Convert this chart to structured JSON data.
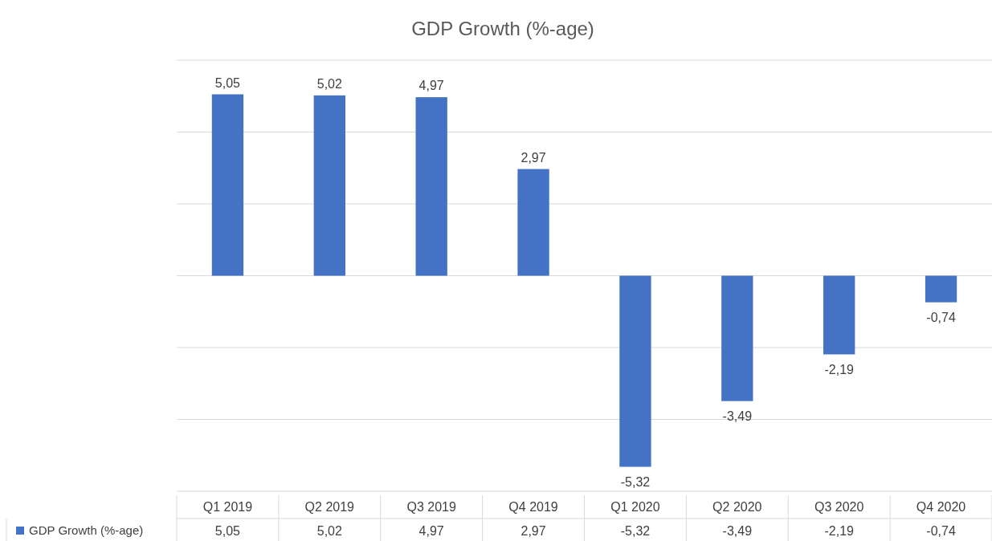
{
  "chart_data": {
    "type": "bar",
    "title": "GDP Growth (%-age)",
    "categories": [
      "Q1 2019",
      "Q2 2019",
      "Q3 2019",
      "Q4 2019",
      "Q1 2020",
      "Q2 2020",
      "Q3 2020",
      "Q4 2020"
    ],
    "series": [
      {
        "name": "GDP Growth (%-age)",
        "color": "#4472c4",
        "values": [
          5.05,
          5.02,
          4.97,
          2.97,
          -5.32,
          -3.49,
          -2.19,
          -0.74
        ],
        "value_labels": [
          "5,05",
          "5,02",
          "4,97",
          "2,97",
          "-5,32",
          "-3,49",
          "-2,19",
          "-0,74"
        ]
      }
    ],
    "ylim": [
      -6,
      6
    ],
    "yticks": [
      {
        "value": -6,
        "label": null
      },
      {
        "value": -4,
        "label": null
      },
      {
        "value": -2,
        "label": null
      },
      {
        "value": 0,
        "label": null
      },
      {
        "value": 2,
        "label": null
      },
      {
        "value": 4,
        "label": null
      },
      {
        "value": 6,
        "label": null
      }
    ],
    "grid": "y",
    "tick_labels": "x",
    "legend": "bottom"
  }
}
